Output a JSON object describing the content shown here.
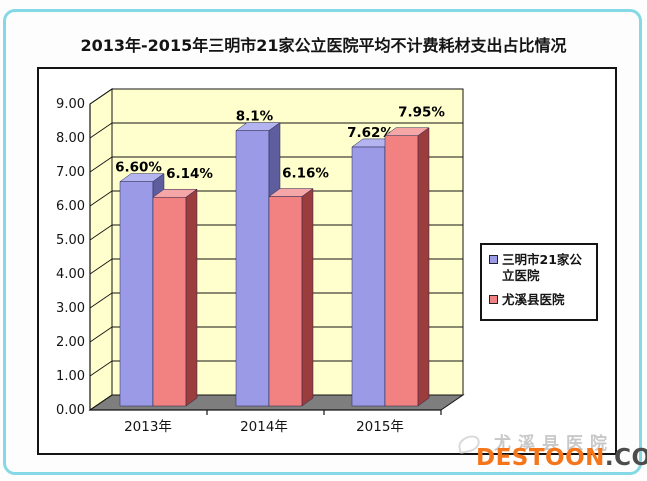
{
  "frame": {
    "border_color": "#85D9E6"
  },
  "title": "2013年-2015年三明市21家公立医院平均不计费耗材支出占比情况",
  "chart_data": {
    "type": "bar",
    "variant": "3d-clustered-column",
    "title": "2013年-2015年三明市21家公立医院平均不计费耗材支出占比情况",
    "categories": [
      "2013年",
      "2014年",
      "2015年"
    ],
    "series": [
      {
        "name": "三明市21家公立医院",
        "values": [
          6.6,
          8.1,
          7.62
        ],
        "data_labels": [
          "6.60%",
          "8.1%",
          "7.62%"
        ],
        "color_front": "#9A9AE6",
        "color_top": "#B4B4F0",
        "color_side": "#5E5E9E"
      },
      {
        "name": "尤溪县医院",
        "values": [
          6.14,
          6.16,
          7.95
        ],
        "data_labels": [
          "6.14%",
          "6.16%",
          "7.95%"
        ],
        "color_front": "#F28282",
        "color_top": "#F5A6A6",
        "color_side": "#9C3D3D"
      }
    ],
    "ylim": [
      0,
      9
    ],
    "ytick_step": 1,
    "ytick_labels": [
      "0.00",
      "1.00",
      "2.00",
      "3.00",
      "4.00",
      "5.00",
      "6.00",
      "7.00",
      "8.00",
      "9.00"
    ],
    "grid": true,
    "legend_position": "right",
    "wall_color": "#FFFFCE",
    "floor_color": "#7E7E7E",
    "axis_color": "#141414"
  },
  "watermark": {
    "site_text": "尤溪县医院",
    "brand_name": "DESTOON",
    "brand_tld": ".COM",
    "brand_color": "#F5761A"
  }
}
